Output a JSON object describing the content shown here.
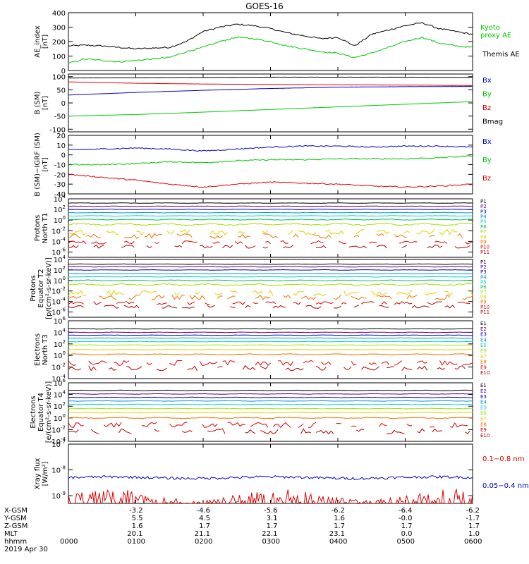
{
  "title": "GOES-16",
  "colors": {
    "black": "#000000",
    "green": "#00c800",
    "blue": "#0000c8",
    "red": "#e00000",
    "P1": "#000000",
    "P2": "#5a0090",
    "P3": "#0000d0",
    "P4": "#0090e0",
    "P5": "#00d0d0",
    "P6": "#00c050",
    "P7": "#a0e000",
    "P8": "#e0d000",
    "P9": "#f07000",
    "P10": "#e00000",
    "P11": "#b00000"
  },
  "chart_data": [
    {
      "id": "ae",
      "type": "line",
      "ylabel": "AE_index\n[nT]",
      "ylim": [
        0,
        400
      ],
      "yticks": [
        "0",
        "100",
        "200",
        "300",
        "400"
      ],
      "ytick_values": [
        0,
        100,
        200,
        300,
        400
      ],
      "legend": [
        {
          "text": "Kyoto\nproxy AE",
          "color": "#00c800"
        },
        {
          "text": "Themis AE",
          "color": "#000000"
        }
      ],
      "x": [
        0,
        0.25,
        0.5,
        0.75,
        1,
        1.25,
        1.5,
        1.75,
        2,
        2.25,
        2.5,
        2.75,
        3,
        3.25,
        3.5,
        3.75,
        4,
        4.25,
        4.5,
        4.75,
        5,
        5.25,
        5.5,
        5.75,
        6
      ],
      "series": [
        {
          "name": "Themis AE",
          "color": "#000000",
          "values": [
            170,
            175,
            170,
            160,
            150,
            155,
            160,
            200,
            270,
            300,
            320,
            310,
            290,
            260,
            240,
            220,
            230,
            170,
            250,
            280,
            310,
            330,
            290,
            270,
            250
          ]
        },
        {
          "name": "Kyoto proxy AE",
          "color": "#00c800",
          "values": [
            50,
            80,
            70,
            60,
            70,
            80,
            90,
            130,
            160,
            200,
            230,
            220,
            200,
            170,
            150,
            130,
            120,
            90,
            120,
            160,
            200,
            230,
            190,
            170,
            160
          ]
        }
      ]
    },
    {
      "id": "bsm",
      "type": "line",
      "ylabel": "B (SM)\n[nT]",
      "ylim": [
        -110,
        110
      ],
      "yticks": [
        "-100",
        "-50",
        "0",
        "50",
        "100"
      ],
      "ytick_values": [
        -100,
        -50,
        0,
        50,
        100
      ],
      "legend": [
        {
          "text": "Bx",
          "color": "#0000c8"
        },
        {
          "text": "By",
          "color": "#00c800"
        },
        {
          "text": "Bz",
          "color": "#e00000"
        },
        {
          "text": "Bmag",
          "color": "#000000"
        }
      ],
      "x": [
        0,
        1,
        2,
        3,
        4,
        5,
        6
      ],
      "series": [
        {
          "name": "Bmag",
          "color": "#000000",
          "values": [
            95,
            96,
            97,
            98,
            98,
            98,
            97
          ]
        },
        {
          "name": "Bz",
          "color": "#e00000",
          "values": [
            80,
            75,
            72,
            70,
            69,
            68,
            66
          ]
        },
        {
          "name": "Bx",
          "color": "#0000c8",
          "values": [
            30,
            40,
            48,
            55,
            60,
            62,
            63
          ]
        },
        {
          "name": "By",
          "color": "#00c800",
          "values": [
            -50,
            -44,
            -35,
            -25,
            -15,
            -5,
            5
          ]
        }
      ]
    },
    {
      "id": "dbsm",
      "type": "line",
      "ylabel": "B (SM)−IGRF (SM)\n[nT]",
      "ylim": [
        -40,
        20
      ],
      "yticks": [
        "-40",
        "-30",
        "-20",
        "-10",
        "0",
        "10",
        "20"
      ],
      "ytick_values": [
        -40,
        -30,
        -20,
        -10,
        0,
        10,
        20
      ],
      "legend": [
        {
          "text": "Bx",
          "color": "#0000c8"
        },
        {
          "text": "By",
          "color": "#00c800"
        },
        {
          "text": "Bz",
          "color": "#e00000"
        }
      ],
      "x": [
        0,
        0.5,
        1,
        1.5,
        2,
        2.5,
        3,
        3.5,
        4,
        4.5,
        5,
        5.5,
        6
      ],
      "series": [
        {
          "name": "Bx",
          "color": "#0000c8",
          "values": [
            5,
            6,
            7,
            6,
            4,
            6,
            8,
            9,
            9,
            8,
            9,
            9,
            8
          ]
        },
        {
          "name": "By",
          "color": "#00c800",
          "values": [
            -10,
            -10,
            -9,
            -7,
            -8,
            -6,
            -5,
            -5,
            -4,
            -4,
            -4,
            -3,
            -1
          ]
        },
        {
          "name": "Bz",
          "color": "#e00000",
          "values": [
            -20,
            -23,
            -26,
            -30,
            -33,
            -30,
            -28,
            -29,
            -30,
            -32,
            -33,
            -32,
            -30
          ]
        }
      ]
    },
    {
      "id": "pn",
      "type": "line",
      "ylog": true,
      "ylabel": "Protons\nNorth T1",
      "ylim_log": [
        -7,
        4
      ],
      "yticks": [
        {
          "exp": 4
        },
        {
          "exp": 2
        },
        {
          "exp": 0
        },
        {
          "exp": -2
        },
        {
          "exp": -4
        },
        {
          "exp": -6
        }
      ],
      "legend": [
        {
          "text": "P1",
          "color": "#000000"
        },
        {
          "text": "P2",
          "color": "#5a0090"
        },
        {
          "text": "P3",
          "color": "#0000d0"
        },
        {
          "text": "P4",
          "color": "#0090e0"
        },
        {
          "text": "P5",
          "color": "#00d0d0"
        },
        {
          "text": "P6",
          "color": "#00c050"
        },
        {
          "text": "P7",
          "color": "#a0e000"
        },
        {
          "text": "P8",
          "color": "#e0d000"
        },
        {
          "text": "P9",
          "color": "#f07000"
        },
        {
          "text": "P10",
          "color": "#e00000"
        },
        {
          "text": "P11",
          "color": "#b00000"
        }
      ],
      "levels": [
        3.2,
        2.6,
        2.0,
        1.4,
        0.8,
        0.1,
        -0.8,
        -2.3,
        -3.0,
        -4.2,
        -5.0
      ],
      "noise": [
        0.05,
        0.05,
        0.05,
        0.05,
        0.05,
        0.1,
        0.2,
        0.35,
        0.3,
        0.2,
        0.2
      ],
      "gappy": [
        false,
        false,
        false,
        false,
        false,
        false,
        false,
        true,
        true,
        true,
        true
      ]
    },
    {
      "id": "pe",
      "type": "line",
      "ylog": true,
      "ylabel": "Protons\nEquator T2\n[p/(cm²-s-sr-keV)]",
      "ylim_log": [
        -7,
        4
      ],
      "yticks": [
        {
          "exp": 4
        },
        {
          "exp": 2
        },
        {
          "exp": 0
        },
        {
          "exp": -2
        },
        {
          "exp": -4
        },
        {
          "exp": -6
        }
      ],
      "legend": [
        {
          "text": "P1",
          "color": "#000000"
        },
        {
          "text": "P2",
          "color": "#5a0090"
        },
        {
          "text": "P3",
          "color": "#0000d0"
        },
        {
          "text": "P4",
          "color": "#0090e0"
        },
        {
          "text": "P5",
          "color": "#00d0d0"
        },
        {
          "text": "P6",
          "color": "#00c050"
        },
        {
          "text": "P7",
          "color": "#a0e000"
        },
        {
          "text": "P8",
          "color": "#e0d000"
        },
        {
          "text": "P9",
          "color": "#f07000"
        },
        {
          "text": "P10",
          "color": "#e00000"
        },
        {
          "text": "P11",
          "color": "#b00000"
        }
      ],
      "levels": [
        3.1,
        2.6,
        2.0,
        1.3,
        0.7,
        0.0,
        -0.8,
        -2.4,
        -3.2,
        -4.3,
        -5.0
      ],
      "noise": [
        0.05,
        0.05,
        0.05,
        0.05,
        0.05,
        0.1,
        0.2,
        0.35,
        0.3,
        0.2,
        0.2
      ],
      "gappy": [
        false,
        false,
        false,
        false,
        false,
        false,
        false,
        true,
        true,
        true,
        true
      ]
    },
    {
      "id": "en",
      "type": "line",
      "ylog": true,
      "ylabel": "Electrons\nNorth T3",
      "ylim_log": [
        -4,
        6
      ],
      "yticks": [
        {
          "exp": 6
        },
        {
          "exp": 4
        },
        {
          "exp": 2
        },
        {
          "exp": 0
        },
        {
          "exp": -2
        },
        {
          "exp": -4
        }
      ],
      "legend": [
        {
          "text": "E1",
          "color": "#000000"
        },
        {
          "text": "E2",
          "color": "#5a0090"
        },
        {
          "text": "E3",
          "color": "#0000d0"
        },
        {
          "text": "E4",
          "color": "#0090e0"
        },
        {
          "text": "E5",
          "color": "#00d0d0"
        },
        {
          "text": "E6",
          "color": "#a0e000"
        },
        {
          "text": "E7",
          "color": "#e0d000"
        },
        {
          "text": "E8",
          "color": "#f07000"
        },
        {
          "text": "E9",
          "color": "#e00000"
        },
        {
          "text": "E10",
          "color": "#b00000"
        }
      ],
      "levels": [
        4.6,
        4.0,
        3.5,
        3.0,
        2.4,
        1.8,
        1.0,
        0.2,
        -1.3,
        -2.2
      ],
      "noise": [
        0.05,
        0.05,
        0.05,
        0.05,
        0.05,
        0.05,
        0.05,
        0.1,
        0.3,
        0.3
      ],
      "gappy": [
        false,
        false,
        false,
        false,
        false,
        false,
        false,
        false,
        true,
        true
      ]
    },
    {
      "id": "ee",
      "type": "line",
      "ylog": true,
      "ylabel": "Electrons\nEquator T4\n[e/(cm²-s-sr-keV)]",
      "ylim_log": [
        -4,
        6
      ],
      "yticks": [
        {
          "exp": 6
        },
        {
          "exp": 4
        },
        {
          "exp": 2
        },
        {
          "exp": 0
        },
        {
          "exp": -2
        },
        {
          "exp": -4
        }
      ],
      "legend": [
        {
          "text": "E1",
          "color": "#000000"
        },
        {
          "text": "E2",
          "color": "#5a0090"
        },
        {
          "text": "E3",
          "color": "#0000d0"
        },
        {
          "text": "E4",
          "color": "#0090e0"
        },
        {
          "text": "E5",
          "color": "#00d0d0"
        },
        {
          "text": "E6",
          "color": "#a0e000"
        },
        {
          "text": "E7",
          "color": "#e0d000"
        },
        {
          "text": "E8",
          "color": "#f07000"
        },
        {
          "text": "E9",
          "color": "#e00000"
        },
        {
          "text": "E10",
          "color": "#b00000"
        }
      ],
      "levels": [
        4.7,
        4.1,
        3.5,
        2.9,
        2.3,
        1.6,
        0.9,
        0.0,
        -1.2,
        -2.3
      ],
      "noise": [
        0.05,
        0.05,
        0.05,
        0.05,
        0.05,
        0.05,
        0.05,
        0.1,
        0.3,
        0.3
      ],
      "gappy": [
        false,
        false,
        false,
        false,
        false,
        false,
        false,
        false,
        true,
        true
      ]
    },
    {
      "id": "xray",
      "type": "line",
      "ylog": true,
      "ylabel": "Xray flux\n[W/m²]",
      "ylim_log": [
        -9.3,
        -7
      ],
      "yticks": [
        {
          "exp": -7
        },
        {
          "exp": -8
        },
        {
          "exp": -9
        }
      ],
      "legend": [
        {
          "text": "0.1−0.8 nm",
          "color": "#e00000"
        },
        {
          "text": "0.05−0.4 nm",
          "color": "#0000c8"
        }
      ],
      "series": [
        {
          "name": "0.1−0.8 nm",
          "color": "#e00000",
          "level": -9.3,
          "spike": 0.35
        },
        {
          "name": "0.05−0.4 nm",
          "color": "#0000c8",
          "level": -8.3,
          "spike": 0.1
        }
      ]
    }
  ],
  "xaxis": {
    "positions": [
      0,
      1,
      2,
      3,
      4,
      5,
      6
    ],
    "rows": [
      {
        "label": "X-GSM",
        "values": [
          "",
          "-3.2",
          "-4.6",
          "-5.6",
          "-6.2",
          "-6.4",
          "-6.2"
        ]
      },
      {
        "label": "Y-GSM",
        "values": [
          "",
          "5.5",
          "4.5",
          "3.1",
          "1.6",
          "-0.0",
          "-1.7"
        ]
      },
      {
        "label": "Z-GSM",
        "values": [
          "",
          "1.6",
          "1.7",
          "1.7",
          "1.7",
          "1.7",
          "1.7"
        ]
      },
      {
        "label": "MLT",
        "values": [
          "",
          "20.1",
          "21.1",
          "22.1",
          "23.1",
          "0.0",
          "1.0"
        ]
      },
      {
        "label": "hhmm",
        "values": [
          "0000",
          "0100",
          "0200",
          "0300",
          "0400",
          "0500",
          "0600"
        ]
      }
    ],
    "date": "2019 Apr 30"
  }
}
